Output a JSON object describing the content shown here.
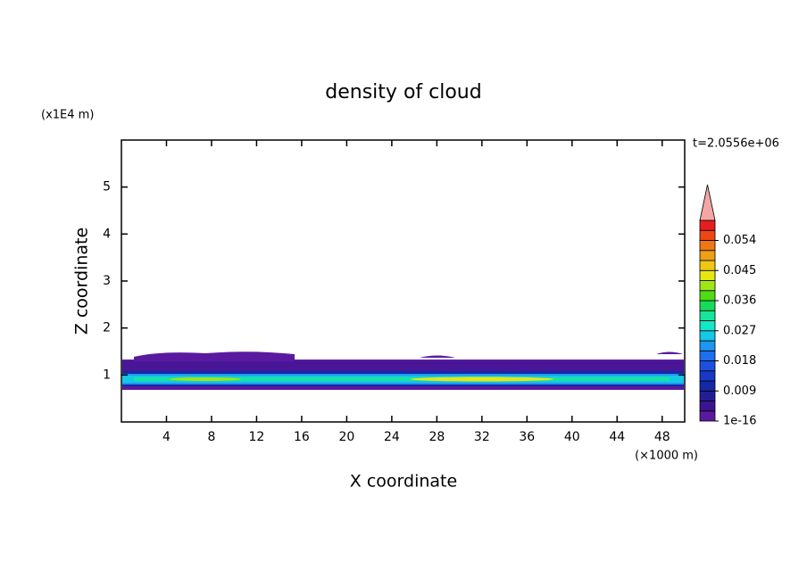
{
  "chart_data": {
    "type": "contour",
    "title": "density of cloud",
    "x_label": "X coordinate",
    "y_label": "Z coordinate",
    "x_unit": "(×1000 m)",
    "y_unit": "(x1E4 m)",
    "time_label": "t=2.0556e+06",
    "xlim": [
      0,
      50
    ],
    "xticks": [
      4,
      8,
      12,
      16,
      20,
      24,
      28,
      32,
      36,
      40,
      44,
      48
    ],
    "ylim": [
      0,
      6
    ],
    "yticks": [
      1,
      2,
      3,
      4,
      5
    ],
    "colorbar": {
      "clim": [
        1e-16,
        0.06
      ],
      "ticks": [
        1e-16,
        0.009,
        0.018,
        0.027,
        0.036,
        0.045,
        0.054
      ],
      "colors": [
        "#5a1aa0",
        "#3c1490",
        "#241e96",
        "#1428a8",
        "#1838c8",
        "#1e50e0",
        "#1e6ef0",
        "#1e96f0",
        "#14c8e6",
        "#14e6c8",
        "#14e69a",
        "#14dc5a",
        "#50dc14",
        "#a0e614",
        "#e6e614",
        "#f0c814",
        "#f0a014",
        "#f07814",
        "#f04614",
        "#e61e1e"
      ],
      "extend_color": "#f4a6a6"
    }
  }
}
